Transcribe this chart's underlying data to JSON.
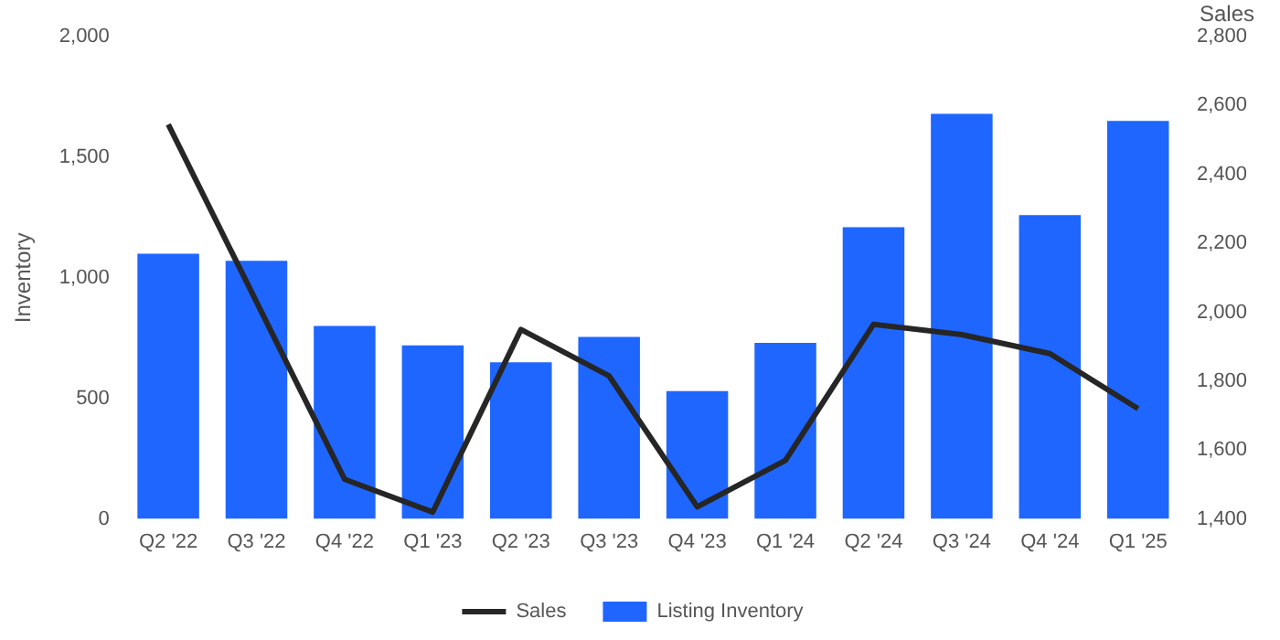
{
  "chart_data": {
    "type": "bar",
    "ylabel": "Inventory",
    "y2label": "Sales",
    "categories": [
      "Q2 '22",
      "Q3 '22",
      "Q4 '22",
      "Q1 '23",
      "Q2 '23",
      "Q3 '23",
      "Q4 '23",
      "Q1 '24",
      "Q2 '24",
      "Q3 '24",
      "Q4 '24",
      "Q1 '25"
    ],
    "series": [
      {
        "name": "Sales",
        "type": "line",
        "axis": "y2",
        "color": "#262626",
        "values": [
          2545,
          2030,
          1515,
          1420,
          1950,
          1815,
          1435,
          1570,
          1965,
          1935,
          1880,
          1720
        ]
      },
      {
        "name": "Listing Inventory",
        "color": "#1f66ff",
        "values": [
          1100,
          1070,
          800,
          720,
          650,
          755,
          530,
          730,
          1210,
          1680,
          1260,
          1650
        ]
      }
    ],
    "ylim": [
      0,
      2000
    ],
    "yticks": [
      0,
      500,
      {
        "value": 1000,
        "label": "1,000"
      },
      {
        "value": 1500,
        "label": "1,500"
      },
      {
        "value": 2000,
        "label": "2,000"
      }
    ],
    "y2lim": [
      1400,
      2800
    ],
    "y2ticks": [
      {
        "value": 1400,
        "label": "1,400"
      },
      {
        "value": 1600,
        "label": "1,600"
      },
      {
        "value": 1800,
        "label": "1,800"
      },
      {
        "value": 2000,
        "label": "2,000"
      },
      {
        "value": 2200,
        "label": "2,200"
      },
      {
        "value": 2400,
        "label": "2,400"
      },
      {
        "value": 2600,
        "label": "2,600"
      },
      {
        "value": 2800,
        "label": "2,800"
      }
    ],
    "grid": false,
    "legend": "bottom",
    "marker": "none",
    "line_style": "solid"
  }
}
